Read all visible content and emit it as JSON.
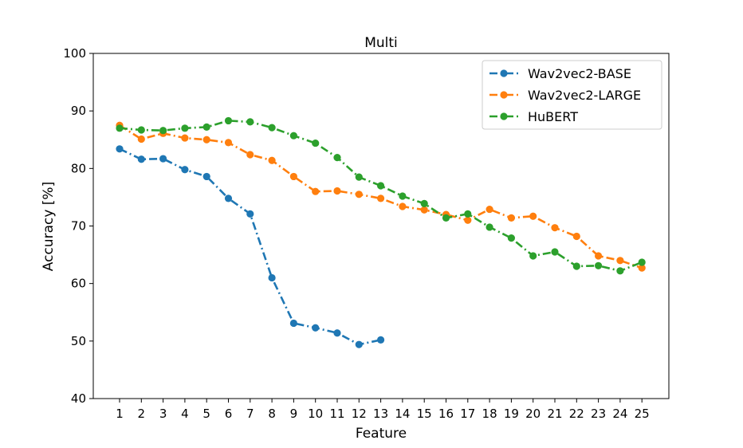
{
  "chart_data": {
    "type": "line",
    "title": "Multi",
    "xlabel": "Feature",
    "ylabel": "Accuracy [%]",
    "ylim": [
      40,
      100
    ],
    "yticks": [
      40,
      50,
      60,
      70,
      80,
      90,
      100
    ],
    "xticks": [
      1,
      2,
      3,
      4,
      5,
      6,
      7,
      8,
      9,
      10,
      11,
      12,
      13,
      14,
      15,
      16,
      17,
      18,
      19,
      20,
      21,
      22,
      23,
      24,
      25
    ],
    "grid": false,
    "legend_position": "top-right",
    "series": [
      {
        "name": "Wav2vec2-BASE",
        "color": "#1f77b4",
        "x": [
          1,
          2,
          3,
          4,
          5,
          6,
          7,
          8,
          9,
          10,
          11,
          12,
          13
        ],
        "values": [
          83.4,
          81.6,
          81.7,
          79.8,
          78.6,
          74.8,
          72.1,
          61.0,
          53.1,
          52.3,
          51.4,
          49.4,
          50.2
        ]
      },
      {
        "name": "Wav2vec2-LARGE",
        "color": "#ff7f0e",
        "x": [
          1,
          2,
          3,
          4,
          5,
          6,
          7,
          8,
          9,
          10,
          11,
          12,
          13,
          14,
          15,
          16,
          17,
          18,
          19,
          20,
          21,
          22,
          23,
          24,
          25
        ],
        "values": [
          87.5,
          85.1,
          86.1,
          85.3,
          85.0,
          84.5,
          82.4,
          81.4,
          78.6,
          76.0,
          76.1,
          75.5,
          74.8,
          73.4,
          72.8,
          72.0,
          71.0,
          72.9,
          71.4,
          71.7,
          69.7,
          68.2,
          64.8,
          64.0,
          62.7
        ]
      },
      {
        "name": "HuBERT",
        "color": "#2ca02c",
        "x": [
          1,
          2,
          3,
          4,
          5,
          6,
          7,
          8,
          9,
          10,
          11,
          12,
          13,
          14,
          15,
          16,
          17,
          18,
          19,
          20,
          21,
          22,
          23,
          24,
          25
        ],
        "values": [
          87.0,
          86.7,
          86.6,
          87.0,
          87.2,
          88.3,
          88.1,
          87.1,
          85.7,
          84.4,
          81.9,
          78.5,
          77.0,
          75.2,
          73.9,
          71.4,
          72.1,
          69.8,
          67.9,
          64.8,
          65.5,
          63.0,
          63.1,
          62.2,
          63.7
        ]
      }
    ]
  }
}
